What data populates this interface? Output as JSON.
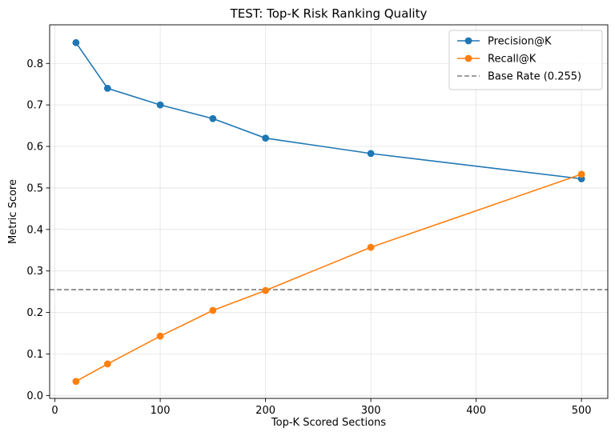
{
  "chart_data": {
    "type": "line",
    "title": "TEST: Top-K Risk Ranking Quality",
    "xlabel": "Top-K Scored Sections",
    "ylabel": "Metric Score",
    "xlim": [
      -5,
      525
    ],
    "ylim": [
      -0.007,
      0.893
    ],
    "xticks": [
      0,
      100,
      200,
      300,
      400,
      500
    ],
    "xtick_labels": [
      "0",
      "100",
      "200",
      "300",
      "400",
      "500"
    ],
    "yticks": [
      0.0,
      0.1,
      0.2,
      0.3,
      0.4,
      0.5,
      0.6,
      0.7,
      0.8
    ],
    "ytick_labels": [
      "0.0",
      "0.1",
      "0.2",
      "0.3",
      "0.4",
      "0.5",
      "0.6",
      "0.7",
      "0.8"
    ],
    "grid": true,
    "legend_position": "top-right",
    "x": [
      20,
      50,
      100,
      150,
      200,
      300,
      500
    ],
    "series": [
      {
        "name": "Precision@K",
        "color": "#1f77b4",
        "values": [
          0.85,
          0.74,
          0.7,
          0.667,
          0.62,
          0.583,
          0.522
        ]
      },
      {
        "name": "Recall@K",
        "color": "#ff7f0e",
        "values": [
          0.034,
          0.076,
          0.143,
          0.205,
          0.253,
          0.357,
          0.533
        ]
      }
    ],
    "reference_lines": [
      {
        "name": "Base Rate (0.255)",
        "y": 0.255,
        "color": "#7f7f7f",
        "style": "dashed"
      }
    ]
  }
}
